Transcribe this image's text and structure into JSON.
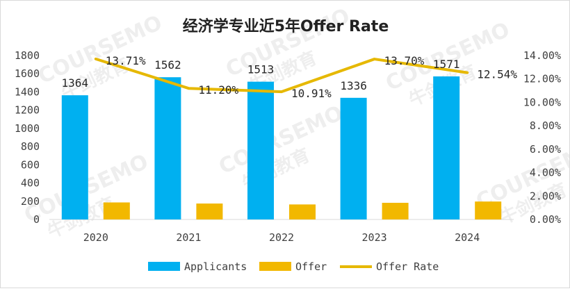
{
  "chart_data": {
    "type": "bar",
    "title": "经济学专业近5年Offer Rate",
    "categories": [
      "2020",
      "2021",
      "2022",
      "2023",
      "2024"
    ],
    "series": [
      {
        "name": "Applicants",
        "type": "bar",
        "axis": "left",
        "color": "#00B0F0",
        "values": [
          1364,
          1562,
          1513,
          1336,
          1571
        ]
      },
      {
        "name": "Offer",
        "type": "bar",
        "axis": "left",
        "color": "#F2B800",
        "values": [
          187,
          175,
          165,
          183,
          197
        ]
      },
      {
        "name": "Offer Rate",
        "type": "line",
        "axis": "right",
        "color": "#E6B800",
        "values": [
          13.71,
          11.2,
          10.91,
          13.7,
          12.54
        ]
      }
    ],
    "data_labels": {
      "Applicants": [
        "1364",
        "1562",
        "1513",
        "1336",
        "1571"
      ],
      "Offer Rate": [
        "13.71%",
        "11.20%",
        "10.91%",
        "13.70%",
        "12.54%"
      ]
    },
    "left_axis": {
      "min": 0,
      "max": 1800,
      "ticks": [
        "0",
        "200",
        "400",
        "600",
        "800",
        "1000",
        "1200",
        "1400",
        "1600",
        "1800"
      ]
    },
    "right_axis": {
      "min": 0,
      "max": 14,
      "ticks": [
        "0.00%",
        "2.00%",
        "4.00%",
        "6.00%",
        "8.00%",
        "10.00%",
        "12.00%",
        "14.00%"
      ]
    },
    "legend": {
      "position": "bottom",
      "entries": [
        "Applicants",
        "Offer",
        "Offer Rate"
      ]
    },
    "grid": false,
    "watermark": {
      "brand": "COURSEMO",
      "cn": "牛剑教育"
    }
  }
}
